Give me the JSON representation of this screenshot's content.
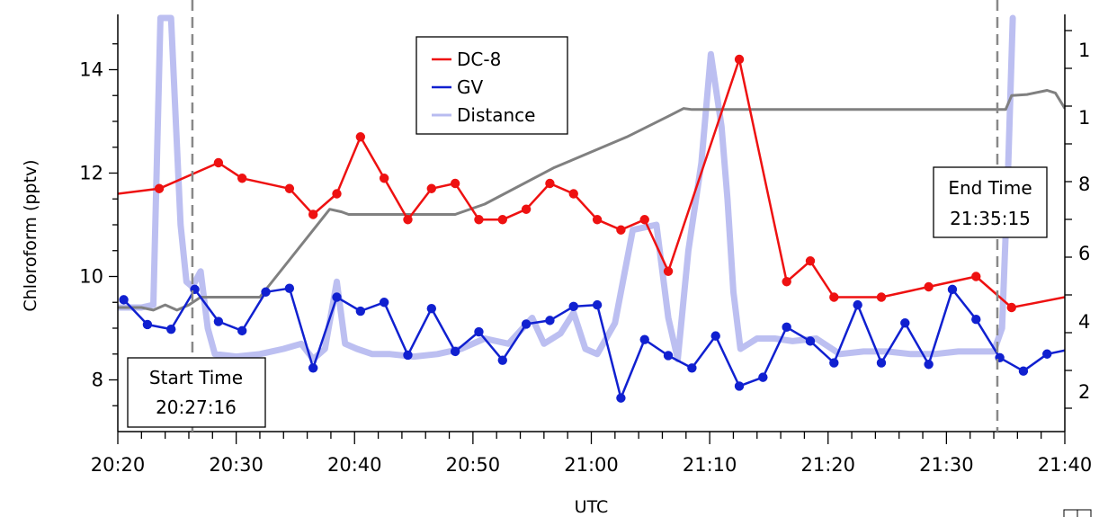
{
  "chart_data": {
    "type": "line",
    "xlabel": "UTC",
    "ylabel": "Chloroform (pptv)",
    "x_ticks": [
      "20:20",
      "20:30",
      "20:40",
      "20:50",
      "21:00",
      "21:10",
      "21:20",
      "21:30",
      "21:40"
    ],
    "x_range_minutes": [
      0,
      80
    ],
    "ylim": [
      7.0,
      15.0
    ],
    "y_ticks": [
      8,
      10,
      12,
      14
    ],
    "right_axis_visible_tick_labels": [
      "1",
      "1",
      "8",
      "6",
      "4",
      "2"
    ],
    "legend": {
      "placement": "top-center",
      "entries": [
        "DC-8",
        "GV",
        "Distance"
      ]
    },
    "colors": {
      "DC-8": "#ee1111",
      "GV": "#1020d0",
      "Distance": "#b8bcf0",
      "altitude_trace": "#808080",
      "markers": "#888888"
    },
    "annotations": [
      {
        "label": "Start Time",
        "time": "20:27:16",
        "minute": 6.3
      },
      {
        "label": "End Time",
        "time": "21:35:15",
        "minute": 74.3
      }
    ],
    "series": [
      {
        "name": "DC-8",
        "x": [
          0,
          3.5,
          8.5,
          10.5,
          14.5,
          16.5,
          18.5,
          20.5,
          22.5,
          24.5,
          26.5,
          28.5,
          30.5,
          32.5,
          34.5,
          36.5,
          38.5,
          40.5,
          42.5,
          44.5,
          46.5,
          52.5,
          56.5,
          58.5,
          60.5,
          64.5,
          68.5,
          72.5,
          75.5,
          80
        ],
        "values": [
          11.6,
          11.7,
          12.2,
          11.9,
          11.7,
          11.2,
          11.6,
          12.7,
          11.9,
          11.1,
          11.7,
          11.8,
          11.1,
          11.1,
          11.3,
          11.8,
          11.6,
          11.1,
          10.9,
          11.1,
          10.1,
          14.2,
          9.9,
          10.3,
          9.6,
          9.6,
          9.8,
          10.0,
          9.4,
          9.6
        ]
      },
      {
        "name": "GV",
        "x": [
          0.5,
          2.5,
          4.5,
          6.5,
          8.5,
          10.5,
          12.5,
          14.5,
          16.5,
          18.5,
          20.5,
          22.5,
          24.5,
          26.5,
          28.5,
          30.5,
          32.5,
          34.5,
          36.5,
          38.5,
          40.5,
          42.5,
          44.5,
          46.5,
          48.5,
          50.5,
          52.5,
          54.5,
          56.5,
          58.5,
          60.5,
          62.5,
          64.5,
          66.5,
          68.5,
          70.5,
          72.5,
          74.5,
          76.5,
          78.5,
          80
        ],
        "values": [
          9.55,
          9.07,
          8.98,
          9.75,
          9.13,
          8.95,
          9.7,
          9.77,
          8.23,
          9.6,
          9.33,
          9.5,
          8.48,
          9.38,
          8.55,
          8.93,
          8.38,
          9.08,
          9.15,
          9.42,
          9.45,
          7.65,
          8.78,
          8.47,
          8.23,
          8.85,
          7.88,
          8.05,
          9.02,
          8.75,
          8.33,
          9.45,
          8.33,
          9.1,
          8.3,
          9.75,
          9.17,
          8.43,
          8.17,
          8.5,
          8.57
        ]
      },
      {
        "name": "Distance",
        "x": [
          0,
          2,
          3,
          3.6,
          4.5,
          5.3,
          5.8,
          6.3,
          7,
          7.6,
          8.2,
          10,
          12,
          14,
          15.5,
          16.5,
          17.5,
          18.5,
          19.2,
          20.2,
          21.5,
          23,
          25,
          27,
          29,
          31,
          33,
          35,
          36,
          37.4,
          38.5,
          39.5,
          40.5,
          42,
          43.5,
          45.5,
          46.5,
          47.3,
          48.2,
          49.3,
          50.1,
          51,
          51.5,
          52,
          52.6,
          53.3,
          54,
          55.5,
          57,
          59,
          61,
          63,
          65,
          67,
          69,
          71,
          73,
          74,
          74.7,
          75.2,
          75.6
        ],
        "values": [
          9.4,
          9.4,
          9.45,
          15,
          15,
          11,
          9.9,
          9.8,
          10.1,
          9.0,
          8.5,
          8.45,
          8.5,
          8.6,
          8.7,
          8.4,
          8.6,
          9.9,
          8.7,
          8.6,
          8.5,
          8.5,
          8.45,
          8.5,
          8.6,
          8.8,
          8.7,
          9.2,
          8.7,
          8.9,
          9.3,
          8.6,
          8.5,
          9.1,
          10.9,
          11.0,
          9.2,
          8.4,
          10.5,
          12.2,
          14.3,
          12.9,
          11.5,
          9.7,
          8.6,
          8.7,
          8.8,
          8.8,
          8.75,
          8.8,
          8.5,
          8.55,
          8.55,
          8.5,
          8.5,
          8.55,
          8.55,
          8.55,
          9.0,
          12.0,
          15.0
        ]
      },
      {
        "name": "",
        "x": [
          0,
          2,
          3,
          4,
          5,
          6,
          7,
          8,
          9,
          10,
          11,
          12,
          17.9,
          18.9,
          19.5,
          28.5,
          31,
          36.8,
          43,
          46.5,
          47.8,
          48.5,
          75,
          75.5,
          76.8,
          78.5,
          79.2,
          80
        ],
        "values": [
          9.4,
          9.4,
          9.35,
          9.45,
          9.35,
          9.45,
          9.6,
          9.6,
          9.6,
          9.6,
          9.6,
          9.6,
          11.3,
          11.25,
          11.2,
          11.2,
          11.4,
          12.1,
          12.7,
          13.1,
          13.25,
          13.23,
          13.23,
          13.5,
          13.52,
          13.6,
          13.55,
          13.25
        ]
      }
    ]
  }
}
